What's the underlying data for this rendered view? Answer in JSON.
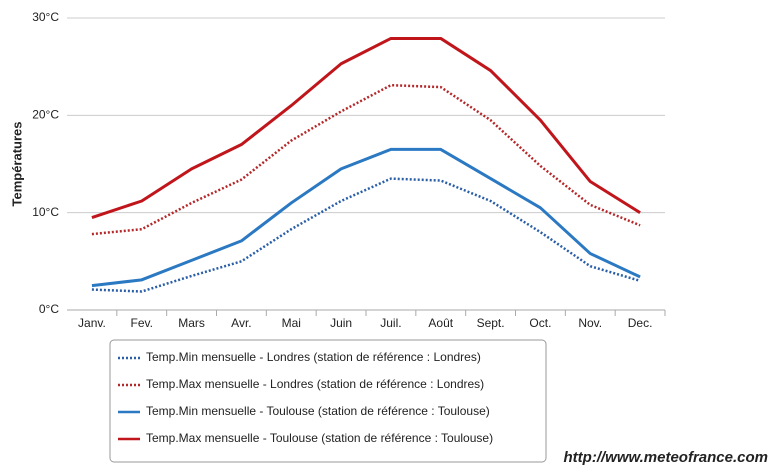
{
  "chart_data": {
    "type": "line",
    "y_label": "Températures",
    "categories": [
      "Janv.",
      "Fev.",
      "Mars",
      "Avr.",
      "Mai",
      "Juin",
      "Juil.",
      "Août",
      "Sept.",
      "Oct.",
      "Nov.",
      "Dec."
    ],
    "series": [
      {
        "name": "Temp.Min mensuelle - Londres (station de référence : Londres)",
        "color": "#2a5fa8",
        "style": "dotted",
        "values": [
          2.1,
          1.9,
          3.5,
          5,
          8.3,
          11.2,
          13.5,
          13.3,
          11.2,
          8,
          4.5,
          3
        ]
      },
      {
        "name": "Temp.Max mensuelle - Londres (station de référence : Londres)",
        "color": "#b5282a",
        "style": "dotted",
        "values": [
          7.8,
          8.3,
          11,
          13.4,
          17.4,
          20.4,
          23.1,
          22.9,
          19.5,
          14.8,
          10.8,
          8.7
        ]
      },
      {
        "name": "Temp.Min mensuelle - Toulouse (station de référence : Toulouse)",
        "color": "#2b79c2",
        "style": "solid",
        "values": [
          2.5,
          3.1,
          5.1,
          7.1,
          11,
          14.5,
          16.5,
          16.5,
          13.5,
          10.5,
          5.8,
          3.4
        ]
      },
      {
        "name": "Temp.Max mensuelle - Toulouse (station de référence : Toulouse)",
        "color": "#c0161b",
        "style": "solid",
        "values": [
          9.5,
          11.2,
          14.5,
          17,
          21,
          25.3,
          27.9,
          27.9,
          24.6,
          19.5,
          13.2,
          10
        ]
      }
    ],
    "ylim": [
      0,
      30
    ],
    "yticks": [
      {
        "value": 0,
        "label": "0°C"
      },
      {
        "value": 10,
        "label": "10°C"
      },
      {
        "value": 20,
        "label": "20°C"
      },
      {
        "value": 30,
        "label": "30°C"
      }
    ],
    "grid": true,
    "legend": "bottom",
    "source": "http://www.meteofrance.com"
  }
}
